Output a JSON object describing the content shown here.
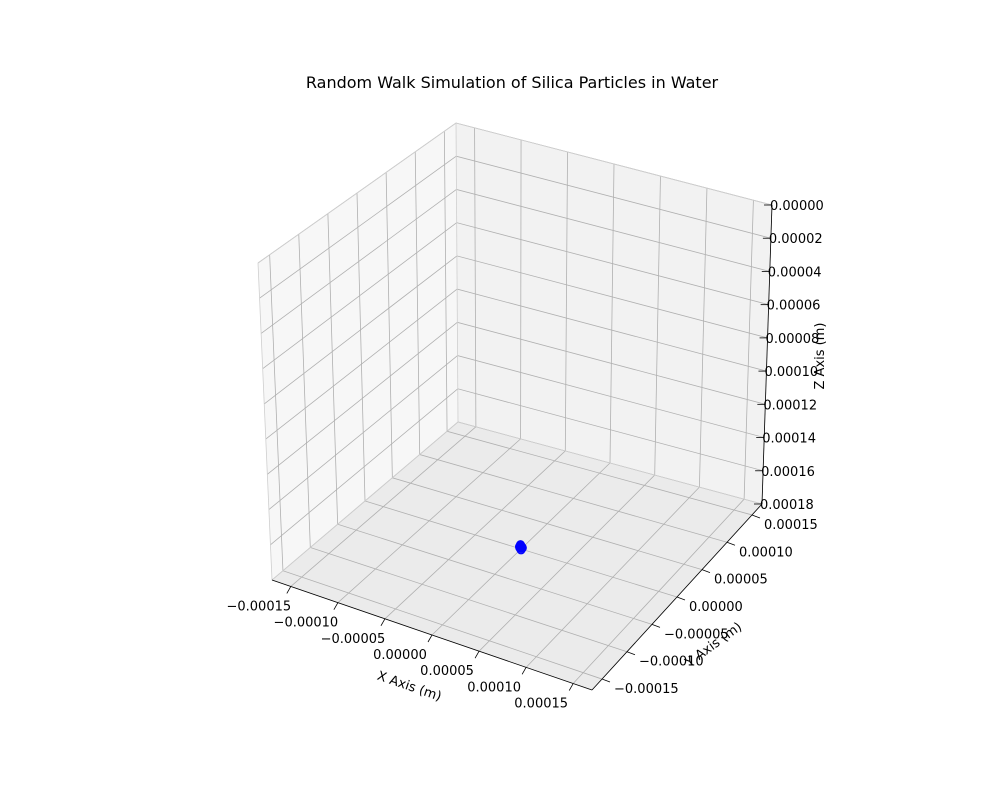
{
  "chart_data": {
    "type": "scatter",
    "projection": "3d",
    "title": "Random Walk Simulation of Silica Particles in Water",
    "xlabel": "X Axis (m)",
    "ylabel": "Y Axis (m)",
    "zlabel": "Z Axis (m)",
    "x_ticks": [
      "−0.00015",
      "−0.00010",
      "−0.00005",
      "0.00000",
      "0.00005",
      "0.00010",
      "0.00015"
    ],
    "y_ticks": [
      "−0.00015",
      "−0.00010",
      "−0.00005",
      "0.00000",
      "0.00005",
      "0.00010",
      "0.00015"
    ],
    "z_ticks": [
      "0.00000",
      "0.00002",
      "0.00004",
      "0.00006",
      "0.00008",
      "0.00010",
      "0.00012",
      "0.00014",
      "0.00016",
      "0.00018"
    ],
    "xlim": [
      -0.00017,
      0.00017
    ],
    "ylim": [
      -0.00017,
      0.00017
    ],
    "zlim": [
      0.00018,
      0.0
    ],
    "grid": true,
    "marker_color": "#0000ff",
    "pane_colors": [
      "#f2f2f2",
      "#ebebeb",
      "#f7f7f7"
    ],
    "grid_color": "#b0b0b0",
    "series": [
      {
        "x": [
          0.0,
          1e-06,
          -1e-06,
          1.5e-06,
          -1.2e-06,
          8e-07,
          -6e-07,
          0.0,
          1.1e-06,
          -9e-07
        ],
        "y": [
          0.0,
          8e-07,
          -1.1e-06,
          -4e-07,
          1.2e-06,
          -1.3e-06,
          5e-07,
          1.4e-06,
          2e-07,
          -7e-07
        ],
        "z": [
          0.000179,
          0.0001795,
          0.0001785,
          0.000179,
          0.000178,
          0.00018,
          0.0001782,
          0.0001798,
          0.0001788,
          0.0001793
        ]
      }
    ]
  }
}
